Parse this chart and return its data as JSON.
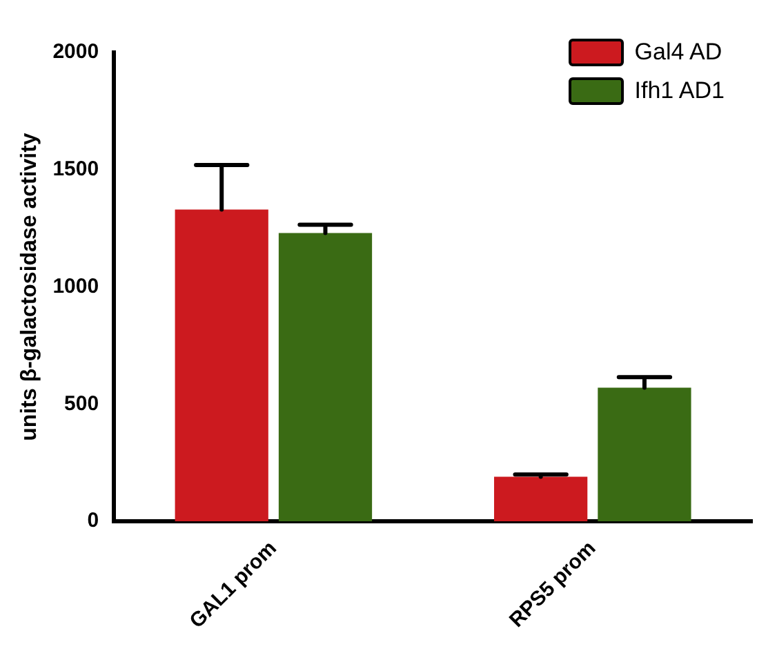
{
  "chart_data": {
    "type": "bar",
    "ylabel": "units β-galactosidase activity",
    "categories": [
      "GAL1 prom",
      "RPS5 prom"
    ],
    "series": [
      {
        "name": "Gal4 AD",
        "color": "#cc1a1f",
        "values": [
          1330,
          190
        ],
        "errors": [
          [
            1330,
            1520
          ],
          [
            190,
            200
          ]
        ]
      },
      {
        "name": "Ifh1 AD1",
        "color": "#3a6b14",
        "values": [
          1230,
          570
        ],
        "errors": [
          [
            1230,
            1265
          ],
          [
            570,
            615
          ]
        ]
      }
    ],
    "ylim": [
      0,
      2000
    ],
    "yticks": [
      0,
      500,
      1000,
      1500,
      2000
    ],
    "grid": false,
    "legend": "top right"
  }
}
